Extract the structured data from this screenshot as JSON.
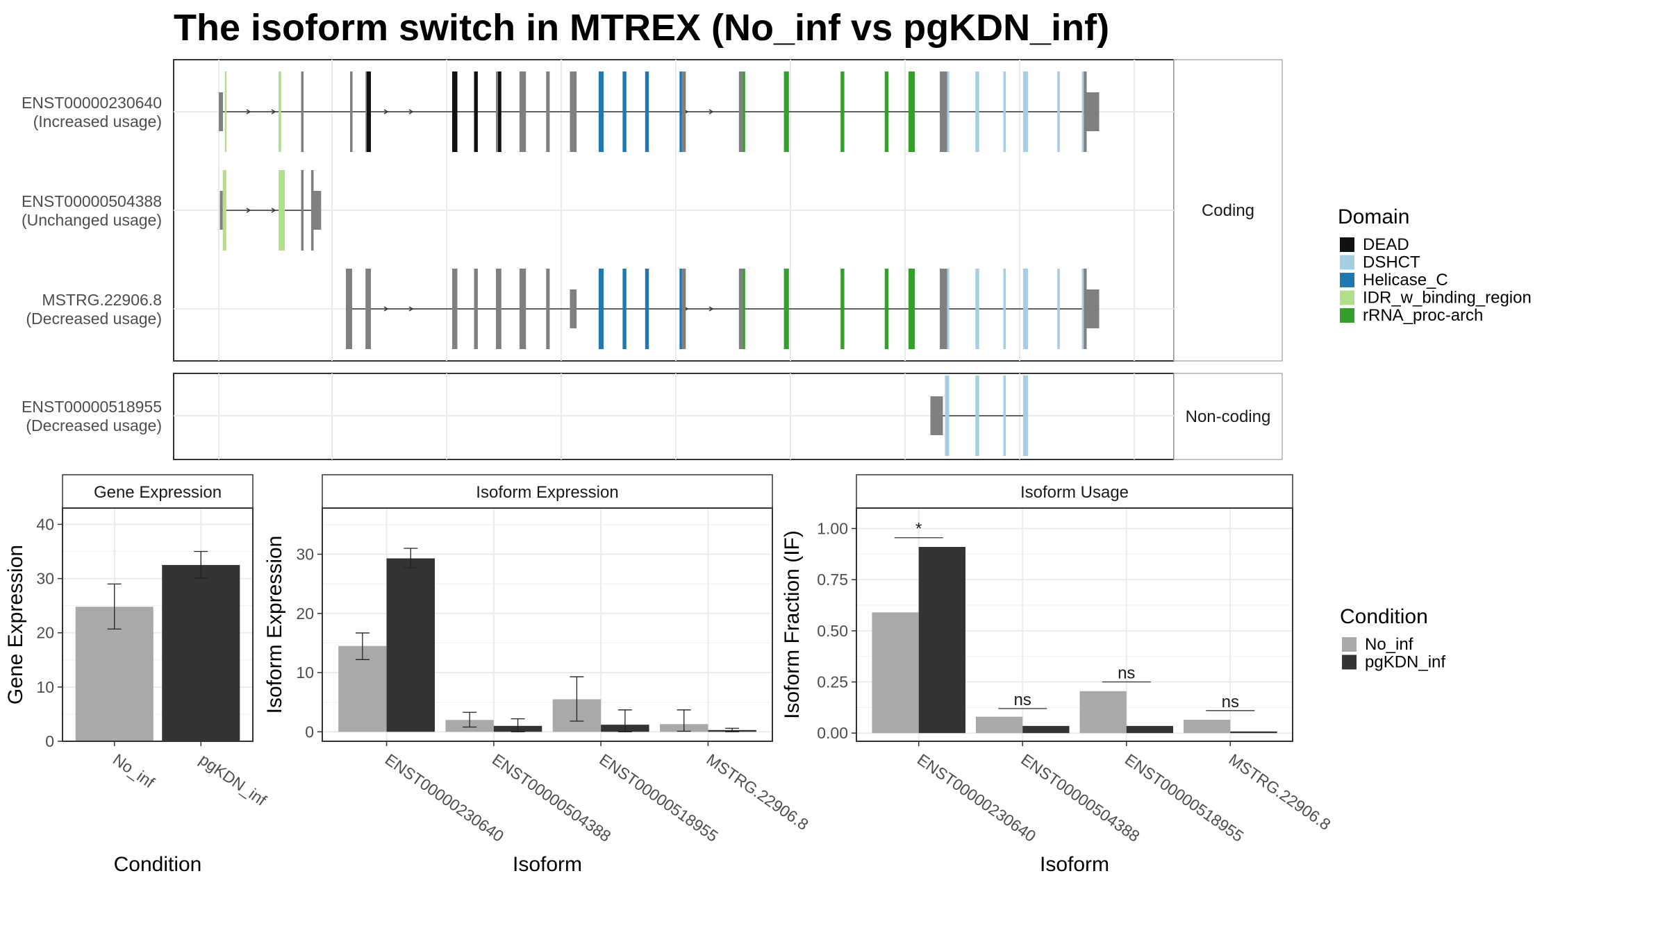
{
  "title": "The isoform switch in MTREX (No_inf vs pgKDN_inf)",
  "colors": {
    "DEAD": "#111111",
    "DSHCT": "#a6cee3",
    "Helicase_C": "#1f78b4",
    "IDR_w_binding_region": "#b2df8a",
    "rRNA_proc-arch": "#33a02c",
    "none": "#808080",
    "No_inf": "#a9a9a9",
    "pgKDN_inf": "#333333"
  },
  "facets": {
    "coding": "Coding",
    "noncoding": "Non-coding"
  },
  "legend": {
    "domain_title": "Domain",
    "domains": [
      "DEAD",
      "DSHCT",
      "Helicase_C",
      "IDR_w_binding_region",
      "rRNA_proc-arch"
    ],
    "condition_title": "Condition",
    "conditions": [
      "No_inf",
      "pgKDN_inf"
    ]
  },
  "isoforms": [
    {
      "id": "ENST00000230640",
      "usage": "(Increased usage)",
      "facet": "coding",
      "exons": [
        [
          0,
          2,
          "none",
          true
        ],
        [
          2.9,
          3.7,
          "IDR_w_binding_region",
          false
        ],
        [
          28.7,
          29.9,
          "IDR_w_binding_region",
          false
        ],
        [
          39.5,
          40.7,
          "none",
          false
        ],
        [
          63,
          64.2,
          "none",
          false
        ],
        [
          70.4,
          71,
          "none",
          false
        ],
        [
          71,
          73,
          "DEAD",
          false
        ],
        [
          112,
          114.5,
          "DEAD",
          false
        ],
        [
          122.5,
          124.3,
          "DEAD",
          false
        ],
        [
          133,
          134,
          "none",
          false
        ],
        [
          134,
          135.6,
          "DEAD",
          false
        ],
        [
          144.3,
          147.4,
          "none",
          false
        ],
        [
          157.1,
          158.8,
          "none",
          false
        ],
        [
          168.5,
          171.7,
          "none",
          false
        ],
        [
          182.3,
          184.7,
          "Helicase_C",
          false
        ],
        [
          193.8,
          195.6,
          "Helicase_C",
          false
        ],
        [
          204.6,
          206.4,
          "Helicase_C",
          false
        ],
        [
          221.1,
          222.3,
          "Helicase_C",
          false
        ],
        [
          222.3,
          224.1,
          "none",
          false
        ],
        [
          249.6,
          251.4,
          "none",
          false
        ],
        [
          251.4,
          252.6,
          "rRNA_proc-arch",
          false
        ],
        [
          271.2,
          273.6,
          "rRNA_proc-arch",
          false
        ],
        [
          298.4,
          300.2,
          "rRNA_proc-arch",
          false
        ],
        [
          319.6,
          321.4,
          "rRNA_proc-arch",
          false
        ],
        [
          331,
          334,
          "rRNA_proc-arch",
          false
        ],
        [
          346,
          349.5,
          "none",
          false
        ],
        [
          349.5,
          350.5,
          "DSHCT",
          false
        ],
        [
          363.1,
          364.9,
          "DSHCT",
          false
        ],
        [
          376.5,
          377.7,
          "DSHCT",
          false
        ],
        [
          386,
          388.4,
          "DSHCT",
          false
        ],
        [
          402.4,
          403.6,
          "DSHCT",
          false
        ],
        [
          414.2,
          415.1,
          "DSHCT",
          false
        ],
        [
          415.1,
          416.5,
          "none",
          false
        ],
        [
          416.5,
          422.5,
          "none",
          true
        ]
      ],
      "arrows": [
        15,
        27,
        81,
        93,
        225,
        237
      ]
    },
    {
      "id": "ENST00000504388",
      "usage": "(Unchanged usage)",
      "facet": "coding",
      "exons": [
        [
          0.5,
          1.9,
          "none",
          true
        ],
        [
          1.9,
          3.6,
          "IDR_w_binding_region",
          false
        ],
        [
          28.7,
          31.7,
          "IDR_w_binding_region",
          false
        ],
        [
          39.5,
          40.7,
          "none",
          false
        ],
        [
          44.3,
          45.5,
          "none",
          false
        ],
        [
          45.5,
          49.1,
          "none",
          true
        ]
      ],
      "arrows": [
        15,
        27
      ]
    },
    {
      "id": "MSTRG.22906.8",
      "usage": "(Decreased usage)",
      "facet": "coding",
      "exons": [
        [
          61,
          64,
          "none",
          false
        ],
        [
          70.4,
          73,
          "none",
          false
        ],
        [
          112,
          114.5,
          "none",
          false
        ],
        [
          122.5,
          124.3,
          "none",
          false
        ],
        [
          133,
          135.6,
          "none",
          false
        ],
        [
          144.3,
          147.4,
          "none",
          false
        ],
        [
          157.1,
          158.8,
          "none",
          false
        ],
        [
          168.5,
          171.7,
          "none",
          true
        ],
        [
          182.3,
          184.7,
          "Helicase_C",
          false
        ],
        [
          193.8,
          195.6,
          "Helicase_C",
          false
        ],
        [
          204.6,
          206.4,
          "Helicase_C",
          false
        ],
        [
          221.1,
          222.3,
          "Helicase_C",
          false
        ],
        [
          222.3,
          224.1,
          "none",
          false
        ],
        [
          249.6,
          251.4,
          "none",
          false
        ],
        [
          251.4,
          252.6,
          "rRNA_proc-arch",
          false
        ],
        [
          271.2,
          273.6,
          "rRNA_proc-arch",
          false
        ],
        [
          298.4,
          300.2,
          "rRNA_proc-arch",
          false
        ],
        [
          319.6,
          321.4,
          "rRNA_proc-arch",
          false
        ],
        [
          331,
          334,
          "rRNA_proc-arch",
          false
        ],
        [
          346,
          349.5,
          "none",
          false
        ],
        [
          349.5,
          350.5,
          "DSHCT",
          false
        ],
        [
          363.1,
          364.9,
          "DSHCT",
          false
        ],
        [
          376.5,
          377.7,
          "DSHCT",
          false
        ],
        [
          386,
          388.4,
          "DSHCT",
          false
        ],
        [
          402.4,
          403.6,
          "DSHCT",
          false
        ],
        [
          414.2,
          415.1,
          "DSHCT",
          false
        ],
        [
          415.1,
          416.5,
          "none",
          false
        ],
        [
          416.5,
          422.5,
          "none",
          true
        ]
      ],
      "arrows": [
        81,
        93,
        225,
        237
      ]
    },
    {
      "id": "ENST00000518955",
      "usage": "(Decreased usage)",
      "facet": "noncoding",
      "exons": [
        [
          341.5,
          347.5,
          "none",
          true
        ],
        [
          348.5,
          350.5,
          "DSHCT",
          false
        ],
        [
          363.1,
          364.9,
          "DSHCT",
          false
        ],
        [
          376.5,
          377.7,
          "DSHCT",
          false
        ],
        [
          386,
          388.4,
          "DSHCT",
          false
        ]
      ],
      "arrows": []
    }
  ],
  "chart_data": [
    {
      "type": "bar",
      "title": "Gene Expression",
      "xlabel": "Condition",
      "ylabel": "Gene Expression",
      "categories": [
        "No_inf",
        "pgKDN_inf"
      ],
      "values": [
        24.8,
        32.5
      ],
      "errors": [
        [
          20.7,
          29.0
        ],
        [
          30.1,
          35.0
        ]
      ],
      "ylim": [
        0,
        43
      ],
      "yticks": [
        0,
        10,
        20,
        30,
        40
      ],
      "grid": true
    },
    {
      "type": "bar",
      "title": "Isoform Expression",
      "xlabel": "Isoform",
      "ylabel": "Isoform Expression",
      "categories": [
        "ENST00000230640",
        "ENST00000504388",
        "ENST00000518955",
        "MSTRG.22906.8"
      ],
      "series": [
        {
          "name": "No_inf",
          "values": [
            14.5,
            2.0,
            5.5,
            1.3
          ],
          "errors": [
            [
              12.2,
              16.7
            ],
            [
              0.8,
              3.3
            ],
            [
              1.8,
              9.3
            ],
            [
              0.1,
              3.7
            ]
          ]
        },
        {
          "name": "pgKDN_inf",
          "values": [
            29.3,
            1.0,
            1.2,
            0.3
          ],
          "errors": [
            [
              27.7,
              31.0
            ],
            [
              0.0,
              2.2
            ],
            [
              0.0,
              3.7
            ],
            [
              0.0,
              0.6
            ]
          ]
        }
      ],
      "ylim": [
        -1.6,
        37.8
      ],
      "yticks": [
        0,
        10,
        20,
        30
      ],
      "grid": true
    },
    {
      "type": "bar",
      "title": "Isoform Usage",
      "xlabel": "Isoform",
      "ylabel": "Isoform Fraction (IF)",
      "categories": [
        "ENST00000230640",
        "ENST00000504388",
        "ENST00000518955",
        "MSTRG.22906.8"
      ],
      "series": [
        {
          "name": "No_inf",
          "values": [
            0.59,
            0.08,
            0.205,
            0.065
          ]
        },
        {
          "name": "pgKDN_inf",
          "values": [
            0.91,
            0.035,
            0.035,
            0.008
          ]
        }
      ],
      "significance": [
        {
          "label": "*",
          "y": 0.955
        },
        {
          "label": "ns",
          "y": 0.12
        },
        {
          "label": "ns",
          "y": 0.25
        },
        {
          "label": "ns",
          "y": 0.11
        }
      ],
      "ylim": [
        -0.04,
        1.1
      ],
      "yticks": [
        0.0,
        0.25,
        0.5,
        0.75,
        1.0
      ],
      "yticklabels": [
        "0.00",
        "0.25",
        "0.50",
        "0.75",
        "1.00"
      ],
      "grid": true
    }
  ]
}
